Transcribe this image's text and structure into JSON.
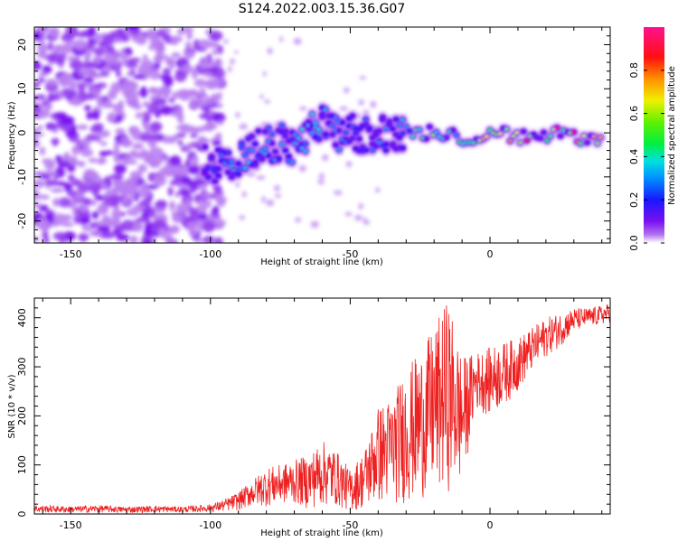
{
  "title": "S124.2022.003.15.36.G07",
  "chart_data": [
    {
      "type": "heatmap",
      "xlabel": "Height of straight line (km)",
      "ylabel": "Frequency (Hz)",
      "xlim": [
        -163,
        43
      ],
      "ylim": [
        -25,
        24
      ],
      "xticks": [
        -150,
        -100,
        -50,
        0
      ],
      "yticks": [
        -20,
        -10,
        0,
        10,
        20
      ],
      "xtick_labels": [
        "-150",
        "-100",
        "-50",
        "0"
      ],
      "ytick_labels": [
        "-20",
        "-10",
        "0",
        "10",
        "20"
      ],
      "colorbar": {
        "label": "Normalized spectral amplitude",
        "range": [
          0,
          1
        ],
        "ticks": [
          0.0,
          0.2,
          0.4,
          0.6,
          0.8
        ],
        "tick_labels": [
          "0.0",
          "0.2",
          "0.4",
          "0.6",
          "0.8"
        ],
        "colormap": "rainbow (white-violet-blue-cyan-green-yellow-red-magenta)"
      },
      "ridge": {
        "description": "peak frequency vs height",
        "x": [
          -102,
          -95,
          -90,
          -85,
          -80,
          -75,
          -70,
          -65,
          -60,
          -55,
          -50,
          -45,
          -40,
          -35,
          -30,
          -25,
          -20,
          -15,
          -10,
          -5,
          0,
          5,
          10,
          15,
          20,
          25,
          30,
          35,
          40
        ],
        "freq": [
          -7,
          -7,
          -6,
          -4,
          -3,
          -2,
          -3,
          0,
          2,
          0,
          0,
          -1,
          0,
          0,
          0,
          0,
          0,
          0,
          -1,
          -2,
          1,
          0,
          -1,
          -1,
          -1,
          0,
          -1,
          -1,
          -1
        ],
        "amplitude": [
          0.2,
          0.3,
          0.35,
          0.35,
          0.3,
          0.3,
          0.35,
          0.4,
          0.35,
          0.3,
          0.25,
          0.25,
          0.3,
          0.3,
          0.35,
          0.6,
          0.55,
          0.45,
          0.5,
          0.6,
          0.85,
          0.85,
          0.8,
          0.9,
          0.95,
          0.9,
          0.9,
          0.95,
          0.95
        ]
      },
      "noise_region_x": [
        -163,
        -100
      ]
    },
    {
      "type": "line",
      "xlabel": "Height of straight line (km)",
      "ylabel": "SNR (10 * v/v)",
      "xlim": [
        -163,
        43
      ],
      "ylim": [
        0,
        440
      ],
      "xticks": [
        -150,
        -100,
        -50,
        0
      ],
      "yticks": [
        0,
        100,
        200,
        300,
        400
      ],
      "xtick_labels": [
        "-150",
        "-100",
        "-50",
        "0"
      ],
      "ytick_labels": [
        "0",
        "100",
        "200",
        "300",
        "400"
      ],
      "color": "#ee2020",
      "x": [
        -163,
        -150,
        -140,
        -130,
        -120,
        -110,
        -100,
        -95,
        -90,
        -85,
        -80,
        -75,
        -70,
        -65,
        -60,
        -55,
        -50,
        -45,
        -40,
        -35,
        -30,
        -25,
        -20,
        -15,
        -10,
        -5,
        0,
        5,
        10,
        15,
        20,
        25,
        30,
        35,
        40,
        43
      ],
      "envelope_low": [
        3,
        2,
        3,
        2,
        3,
        3,
        4,
        5,
        8,
        15,
        15,
        20,
        20,
        10,
        15,
        15,
        5,
        10,
        20,
        20,
        20,
        30,
        40,
        45,
        60,
        210,
        200,
        220,
        250,
        290,
        320,
        340,
        370,
        380,
        385,
        390
      ],
      "envelope_high": [
        18,
        16,
        18,
        15,
        17,
        15,
        20,
        30,
        45,
        70,
        95,
        100,
        110,
        120,
        150,
        130,
        90,
        130,
        220,
        240,
        300,
        330,
        380,
        440,
        320,
        330,
        340,
        350,
        360,
        380,
        400,
        410,
        420,
        420,
        425,
        430
      ]
    }
  ]
}
